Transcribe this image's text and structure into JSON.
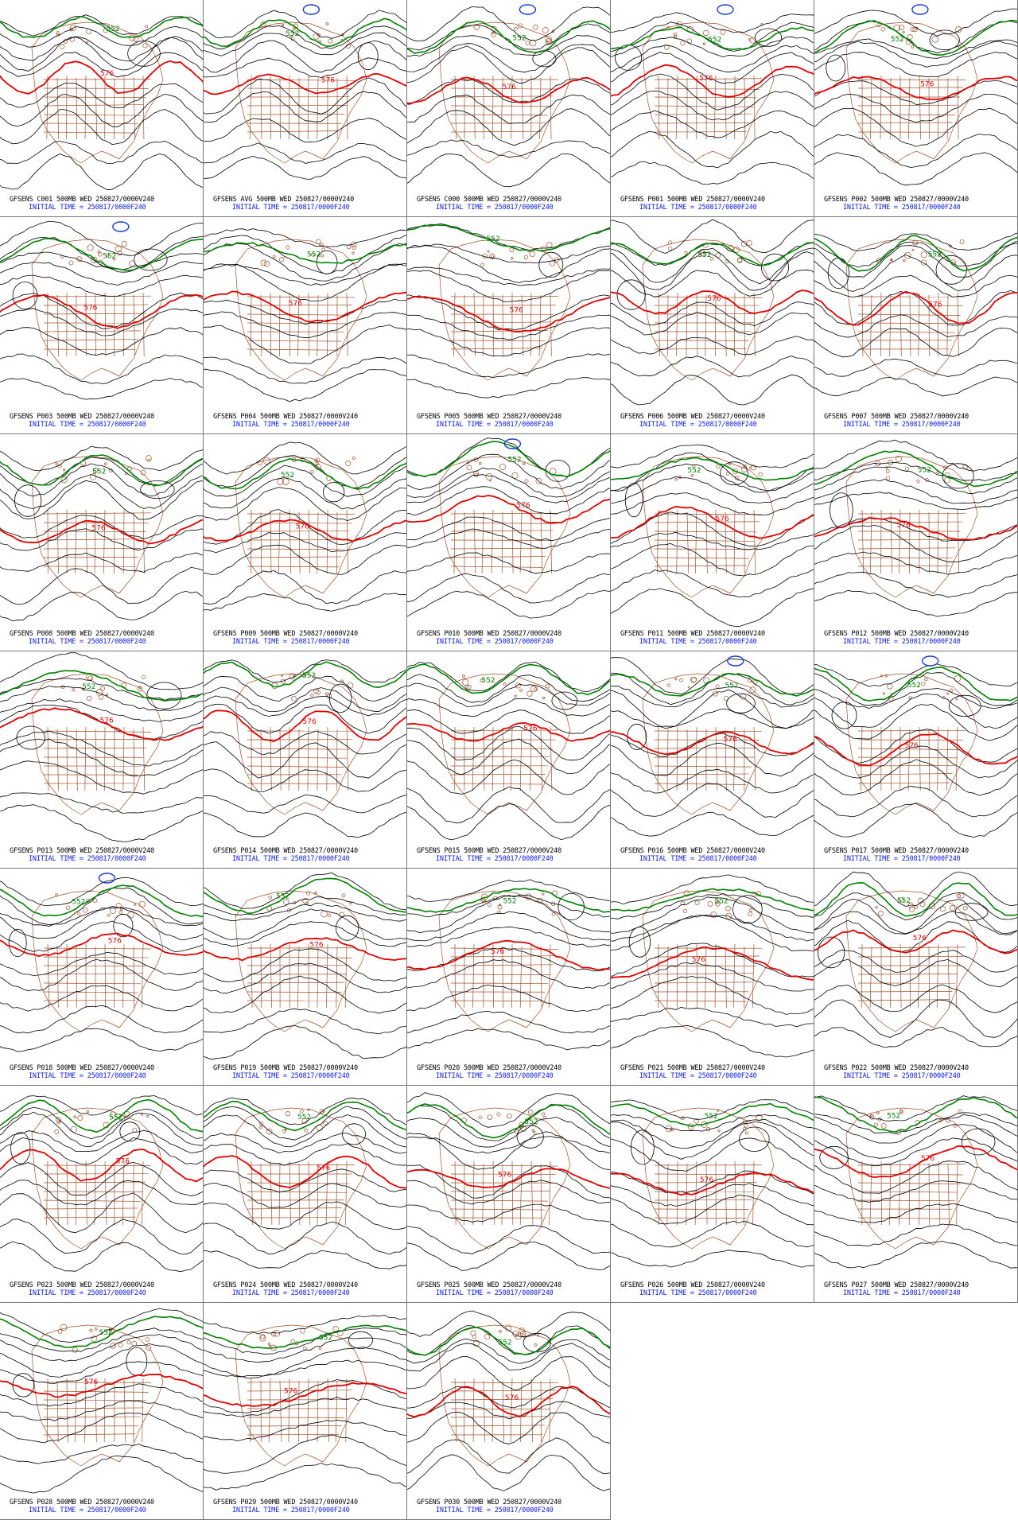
{
  "grid": {
    "columns": 5,
    "rows": 7
  },
  "style": {
    "contour_color": "#000000",
    "line_576_color": "#e00000",
    "line_552_color": "#008000",
    "low_color": "#1a3cd0",
    "map_color": "#a0522d",
    "initial_time_color": "#1020e0"
  },
  "contour_labels": {
    "warm": "576",
    "cold": "552"
  },
  "initial_time_text": "INITIAL TIME = 250817/0000F240",
  "panels": [
    {
      "title": "GFSENS C001 500MB WED 250827/0000V240"
    },
    {
      "title": "GFSENS AVG 500MB WED 250827/0000V240"
    },
    {
      "title": "GFSENS C000 500MB WED 250827/0000V240"
    },
    {
      "title": "GFSENS P001 500MB WED 250827/0000V240"
    },
    {
      "title": "GFSENS P002 500MB WED 250827/0000V240"
    },
    {
      "title": "GFSENS P003 500MB WED 250827/0000V240"
    },
    {
      "title": "GFSENS P004 500MB WED 250827/0000V240"
    },
    {
      "title": "GFSENS P005 500MB WED 250827/0000V240"
    },
    {
      "title": "GFSENS P006 500MB WED 250827/0000V240"
    },
    {
      "title": "GFSENS P007 500MB WED 250827/0000V240"
    },
    {
      "title": "GFSENS P008 500MB WED 250827/0000V240"
    },
    {
      "title": "GFSENS P009 500MB WED 250827/0000V240"
    },
    {
      "title": "GFSENS P010 500MB WED 250827/0000V240"
    },
    {
      "title": "GFSENS P011 500MB WED 250827/0000V240"
    },
    {
      "title": "GFSENS P012 500MB WED 250827/0000V240"
    },
    {
      "title": "GFSENS P013 500MB WED 250827/0000V240"
    },
    {
      "title": "GFSENS P014 500MB WED 250827/0000V240"
    },
    {
      "title": "GFSENS P015 500MB WED 250827/0000V240"
    },
    {
      "title": "GFSENS P016 500MB WED 250827/0000V240"
    },
    {
      "title": "GFSENS P017 500MB WED 250827/0000V240"
    },
    {
      "title": "GFSENS P018 500MB WED 250827/0000V240"
    },
    {
      "title": "GFSENS P019 500MB WED 250827/0000V240"
    },
    {
      "title": "GFSENS P020 500MB WED 250827/0000V240"
    },
    {
      "title": "GFSENS P021 500MB WED 250827/0000V240"
    },
    {
      "title": "GFSENS P022 500MB WED 250827/0000V240"
    },
    {
      "title": "GFSENS P023 500MB WED 250827/0000V240"
    },
    {
      "title": "GFSENS P024 500MB WED 250827/0000V240"
    },
    {
      "title": "GFSENS P025 500MB WED 250827/0000V240"
    },
    {
      "title": "GFSENS P026 500MB WED 250827/0000V240"
    },
    {
      "title": "GFSENS P027 500MB WED 250827/0000V240"
    },
    {
      "title": "GFSENS P028 500MB WED 250827/0000V240"
    },
    {
      "title": "GFSENS P029 500MB WED 250827/0000V240"
    },
    {
      "title": "GFSENS P030 500MB WED 250827/0000V240"
    }
  ]
}
